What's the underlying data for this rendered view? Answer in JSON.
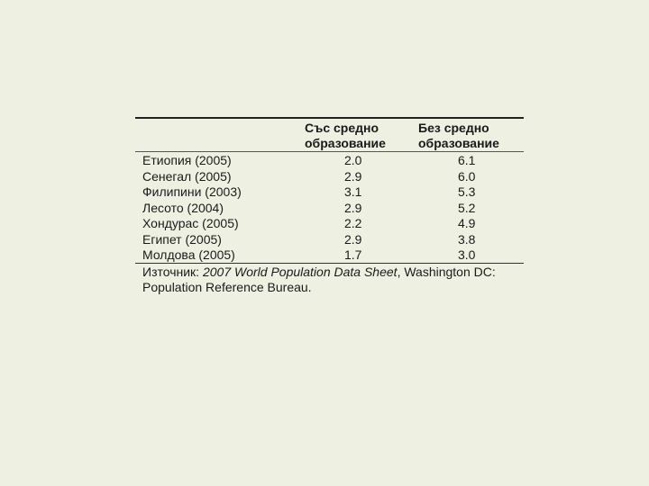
{
  "table": {
    "header": {
      "col1": [
        "Със средно",
        "образование"
      ],
      "col2": [
        "Без средно",
        "образование"
      ]
    },
    "rows": [
      {
        "country": "Етиопия (2005)",
        "with_secondary": "2.0",
        "without_secondary": "6.1"
      },
      {
        "country": "Сенегал (2005)",
        "with_secondary": "2.9",
        "without_secondary": "6.0"
      },
      {
        "country": "Филипини (2003)",
        "with_secondary": "3.1",
        "without_secondary": "5.3"
      },
      {
        "country": "Лесото (2004)",
        "with_secondary": "2.9",
        "without_secondary": "5.2"
      },
      {
        "country": "Хондурас (2005)",
        "with_secondary": "2.2",
        "without_secondary": "4.9"
      },
      {
        "country": "Египет (2005)",
        "with_secondary": "2.9",
        "without_secondary": "3.8"
      },
      {
        "country": "Молдова (2005)",
        "with_secondary": "1.7",
        "without_secondary": "3.0"
      }
    ],
    "source": {
      "prefix": "Източник: ",
      "title": "2007 World Population Data Sheet",
      "suffix": ", Washington DC: Population Reference Bureau."
    }
  }
}
